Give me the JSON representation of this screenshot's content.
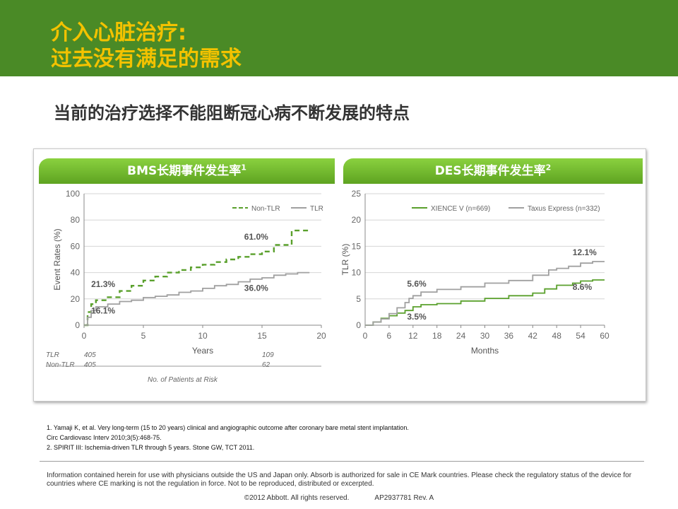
{
  "header": {
    "title_line1": "介入心脏治疗:",
    "title_line2": "过去没有满足的需求"
  },
  "subtitle": "当前的治疗选择不能阻断冠心病不断发展的特点",
  "colors": {
    "header_bg": "#4a8a26",
    "title": "#f3c200",
    "tab": "#6ab62c",
    "series_green": "#5aa02c",
    "series_gray": "#a0a0a0"
  },
  "left_panel": {
    "tab_label": "BMS长期事件发生率",
    "tab_ref": "1"
  },
  "right_panel": {
    "tab_label": "DES长期事件发生率",
    "tab_ref": "2"
  },
  "chart_data": [
    {
      "type": "line",
      "ylabel": "Event Rates (%)",
      "xlabel": "Years",
      "xlim": [
        0,
        20
      ],
      "ylim": [
        0,
        100
      ],
      "xticks": [
        0,
        5,
        10,
        15,
        20
      ],
      "yticks": [
        0,
        20,
        40,
        60,
        80,
        100
      ],
      "grid": true,
      "legend_position": "top-right",
      "series": [
        {
          "name": "Non-TLR",
          "style": "dashed",
          "color": "#5aa02c",
          "x": [
            0,
            0.3,
            0.6,
            1,
            2,
            3,
            4,
            5,
            6,
            7,
            8,
            9,
            10,
            11,
            12,
            13,
            14,
            15,
            16,
            17,
            17.5,
            19
          ],
          "y": [
            0,
            10,
            16,
            19,
            21.3,
            26,
            30,
            34,
            37,
            40,
            42,
            44,
            46,
            48,
            50,
            52,
            54,
            56,
            61,
            61,
            72,
            72
          ]
        },
        {
          "name": "TLR",
          "style": "solid",
          "color": "#a0a0a0",
          "x": [
            0,
            0.3,
            0.6,
            1,
            2,
            3,
            4,
            5,
            6,
            7,
            8,
            9,
            10,
            11,
            12,
            13,
            14,
            15,
            16,
            17,
            18,
            19
          ],
          "y": [
            0,
            6,
            11,
            14,
            16.1,
            18,
            19,
            21,
            22,
            23,
            25,
            26,
            28,
            30,
            31,
            33,
            35,
            36,
            38,
            39,
            40,
            40
          ]
        }
      ],
      "annotations": [
        {
          "text": "21.3%",
          "x": 0.6,
          "y": 29
        },
        {
          "text": "16.1%",
          "x": 0.6,
          "y": 9
        },
        {
          "text": "61.0%",
          "x": 13.5,
          "y": 65
        },
        {
          "text": "36.0%",
          "x": 13.5,
          "y": 26
        }
      ],
      "risk_table": {
        "rows": [
          {
            "label": "TLR",
            "values": [
              "405",
              "109"
            ]
          },
          {
            "label": "Non-TLR",
            "values": [
              "405",
              "62"
            ]
          }
        ],
        "at_x": [
          0,
          15
        ],
        "caption": "No. of Patients at Risk"
      }
    },
    {
      "type": "line",
      "ylabel": "TLR (%)",
      "xlabel": "Months",
      "xlim": [
        0,
        60
      ],
      "ylim": [
        0,
        25
      ],
      "xticks": [
        0,
        6,
        12,
        18,
        24,
        30,
        36,
        42,
        48,
        54,
        60
      ],
      "yticks": [
        0,
        5,
        10,
        15,
        20,
        25
      ],
      "grid": true,
      "legend_position": "top-right",
      "series": [
        {
          "name": "XIENCE V (n=669)",
          "style": "solid",
          "color": "#5aa02c",
          "x": [
            0,
            2,
            4,
            6,
            8,
            10,
            12,
            14,
            18,
            24,
            30,
            36,
            42,
            45,
            48,
            52,
            54,
            57,
            60
          ],
          "y": [
            0,
            0.6,
            1.3,
            1.8,
            2.3,
            2.8,
            3.5,
            3.9,
            4.1,
            4.6,
            5.1,
            5.6,
            6.1,
            6.9,
            7.6,
            8.0,
            8.4,
            8.6,
            8.6
          ]
        },
        {
          "name": "Taxus Express (n=332)",
          "style": "solid",
          "color": "#a0a0a0",
          "x": [
            0,
            2,
            4,
            6,
            8,
            10,
            11,
            12,
            14,
            18,
            24,
            30,
            36,
            42,
            46,
            48,
            51,
            54,
            57,
            60
          ],
          "y": [
            0,
            0.6,
            1.2,
            2.2,
            3.3,
            4.3,
            5.1,
            5.6,
            6.3,
            6.8,
            7.3,
            8.0,
            8.5,
            9.5,
            10.5,
            10.8,
            11.2,
            11.8,
            12.1,
            12.1
          ]
        }
      ],
      "annotations": [
        {
          "text": "5.6%",
          "x": 10.5,
          "y": 7.3
        },
        {
          "text": "3.5%",
          "x": 10.5,
          "y": 1.1
        },
        {
          "text": "12.1%",
          "x": 52,
          "y": 13.3
        },
        {
          "text": "8.6%",
          "x": 52,
          "y": 6.7
        }
      ]
    }
  ],
  "references": [
    "1. Yamaji K, et al. Very long-term (15 to 20 years) clinical and angiographic outcome after coronary bare metal stent implantation.",
    "Circ Cardiovasc Interv 2010;3(5):468-75.",
    "2. SPIRIT III: Ischemia-driven TLR through 5 years. Stone GW, TCT 2011."
  ],
  "disclaimer": "Information contained herein for use with physicians outside the US and Japan only.  Absorb is authorized for sale in CE Mark countries. Please check the regulatory status of the device for countries where CE marking is not the regulation in force. Not to be reproduced, distributed or excerpted.",
  "footer": {
    "copyright": "©2012 Abbott. All rights reserved.",
    "code": "AP2937781 Rev. A"
  }
}
